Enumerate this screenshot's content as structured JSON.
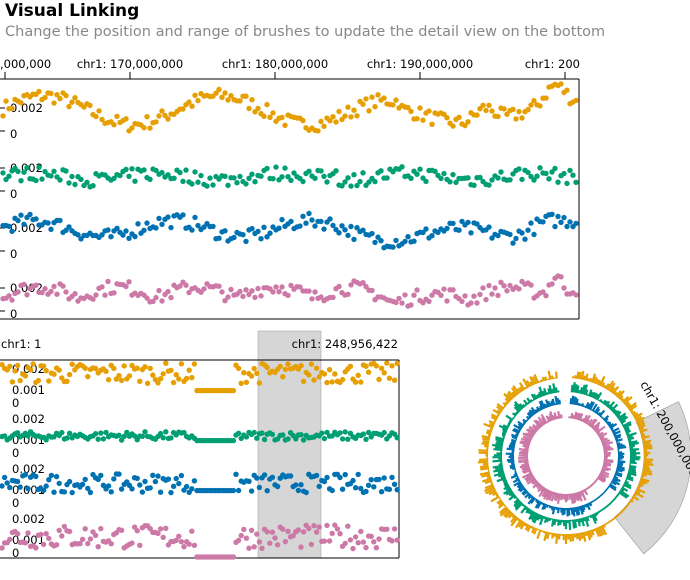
{
  "header": {
    "title": "Visual Linking",
    "subtitle": "Change the position and range of brushes to update the detail view on the bottom"
  },
  "colors": {
    "series": [
      "#E69F00",
      "#009E73",
      "#0072B2",
      "#CC79A7"
    ],
    "brush": "#d6d6d6",
    "axis": "#000000"
  },
  "chart_data": [
    {
      "type": "scatter",
      "name": "overview",
      "x_axis_ticks": [
        {
          "label": ",000,000"
        },
        {
          "label": "chr1: 170,000,000"
        },
        {
          "label": "chr1: 180,000,000"
        },
        {
          "label": "chr1: 190,000,000"
        },
        {
          "label": "chr1: 200"
        }
      ],
      "xlim": [
        164500000,
        200500000
      ],
      "tracks": [
        {
          "y_ticks": [
            "0.002",
            "0"
          ],
          "ylim": [
            0,
            0.0035
          ]
        },
        {
          "y_ticks": [
            "0.002",
            "0"
          ],
          "ylim": [
            0,
            0.0035
          ]
        },
        {
          "y_ticks": [
            "0.002",
            "0"
          ],
          "ylim": [
            0,
            0.0035
          ]
        },
        {
          "y_ticks": [
            "0.002",
            "0"
          ],
          "ylim": [
            0,
            0.0035
          ]
        }
      ]
    },
    {
      "type": "scatter",
      "name": "detail",
      "x_axis_ticks": [
        {
          "label": "chr1: 1"
        },
        {
          "label": "chr1: 248,956,422"
        }
      ],
      "brush_label": "chr1: 248,956,422",
      "tracks": [
        {
          "y_ticks": [
            "0.002",
            "0.001",
            "0"
          ],
          "ylim": [
            0,
            0.0025
          ]
        },
        {
          "y_ticks": [
            "0.002",
            "0.001",
            "0"
          ],
          "ylim": [
            0,
            0.0025
          ]
        },
        {
          "y_ticks": [
            "0.002",
            "0.001",
            "0"
          ],
          "ylim": [
            0,
            0.0025
          ]
        },
        {
          "y_ticks": [
            "0.002",
            "0.001",
            "0"
          ],
          "ylim": [
            0,
            0.0025
          ]
        }
      ]
    },
    {
      "type": "circular",
      "name": "circular-overview",
      "brush_label": "chr1: 200,000,000"
    }
  ]
}
